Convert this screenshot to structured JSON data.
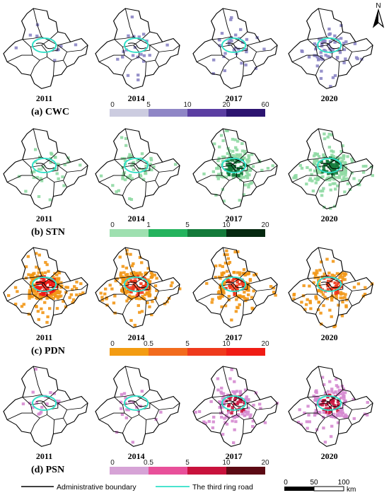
{
  "north": "N",
  "panels": [
    {
      "id": "cwc",
      "title": "(a) CWC",
      "years": [
        "2011",
        "2014",
        "2017",
        "2020"
      ],
      "fill_color": "#8b85c4",
      "density": [
        0.04,
        0.08,
        0.12,
        0.22
      ],
      "ticks": [
        "0",
        "5",
        "10",
        "20",
        "60"
      ],
      "colors": [
        "#cccce0",
        "#8f86c6",
        "#5b3ea2",
        "#2c1470"
      ]
    },
    {
      "id": "stn",
      "title": "(b) STN",
      "years": [
        "2011",
        "2014",
        "2017",
        "2020"
      ],
      "fill_color": "#8fd9a3",
      "density": [
        0.12,
        0.16,
        0.5,
        0.62
      ],
      "ticks": [
        "0",
        "1",
        "5",
        "10",
        "20"
      ],
      "colors": [
        "#9ee0b0",
        "#24b35d",
        "#137a3a",
        "#052810"
      ]
    },
    {
      "id": "pdn",
      "title": "(c) PDN",
      "years": [
        "2011",
        "2014",
        "2017",
        "2020"
      ],
      "fill_color": "#f29716",
      "density": [
        0.7,
        0.6,
        0.5,
        0.42
      ],
      "ticks": [
        "0",
        "0.5",
        "5",
        "10",
        "20"
      ],
      "colors": [
        "#f39c12",
        "#f26b1d",
        "#ef3a1c",
        "#f01c15"
      ]
    },
    {
      "id": "psn",
      "title": "(d) PSN",
      "years": [
        "2011",
        "2014",
        "2017",
        "2020"
      ],
      "fill_color": "#d58ad0",
      "density": [
        0.06,
        0.08,
        0.38,
        0.45
      ],
      "ticks": [
        "0",
        "0.5",
        "5",
        "10",
        "20"
      ],
      "colors": [
        "#d6a3d6",
        "#e8509a",
        "#c8123c",
        "#5c0a14"
      ]
    }
  ],
  "legend": {
    "boundary_label": "Administrative boundary",
    "ring_label": "The third ring road",
    "boundary_color": "#000000",
    "ring_color": "#30e0c8"
  },
  "scale": {
    "ticks": [
      "0",
      "50",
      "100"
    ],
    "unit": "km"
  }
}
